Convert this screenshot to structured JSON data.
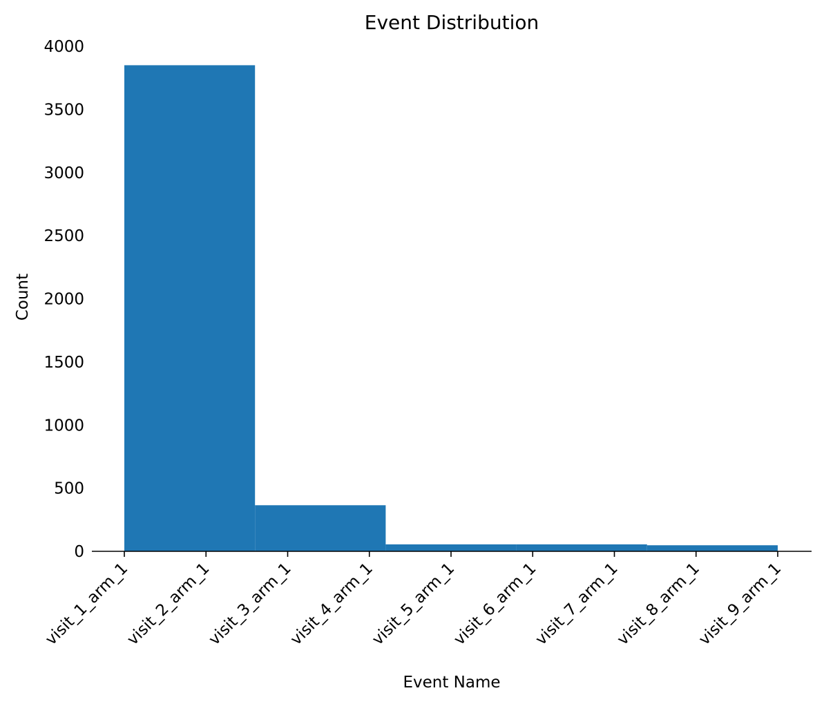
{
  "chart_data": {
    "type": "bar",
    "title": "Event Distribution",
    "xlabel": "Event Name",
    "ylabel": "Count",
    "ylim": [
      0,
      4000
    ],
    "yticks": [
      0,
      500,
      1000,
      1500,
      2000,
      2500,
      3000,
      3500,
      4000
    ],
    "categories": [
      "visit_1_arm_1",
      "visit_2_arm_1",
      "visit_3_arm_1",
      "visit_4_arm_1",
      "visit_5_arm_1",
      "visit_6_arm_1",
      "visit_7_arm_1",
      "visit_8_arm_1",
      "visit_9_arm_1"
    ],
    "bins": [
      {
        "x0": 0.0,
        "x1": 1.6,
        "value": 3850
      },
      {
        "x0": 1.6,
        "x1": 3.2,
        "value": 365
      },
      {
        "x0": 3.2,
        "x1": 4.8,
        "value": 55
      },
      {
        "x0": 4.8,
        "x1": 6.4,
        "value": 55
      },
      {
        "x0": 6.4,
        "x1": 8.0,
        "value": 48
      }
    ],
    "grid": false,
    "bar_color": "#1f77b4"
  }
}
